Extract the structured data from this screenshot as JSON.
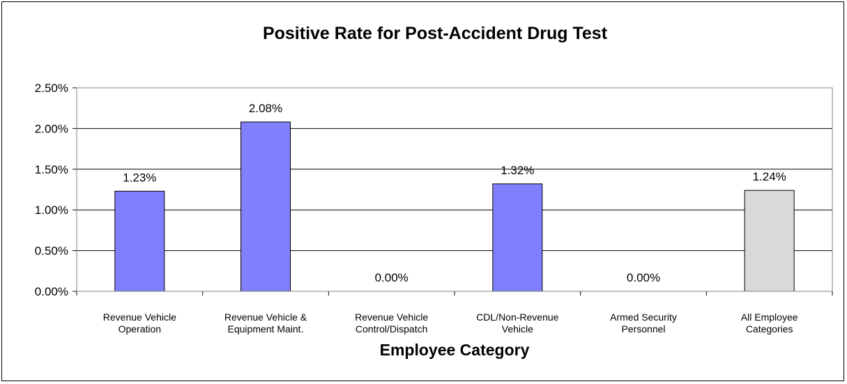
{
  "chart_data": {
    "type": "bar",
    "title": "Positive Rate for Post-Accident Drug Test",
    "xlabel": "Employee Category",
    "ylabel": "",
    "categories": [
      [
        "Revenue Vehicle",
        "Operation"
      ],
      [
        "Revenue Vehicle &",
        "Equipment Maint."
      ],
      [
        "Revenue Vehicle",
        "Control/Dispatch"
      ],
      [
        "CDL/Non-Revenue",
        "Vehicle"
      ],
      [
        "Armed Security",
        "Personnel"
      ],
      [
        "All Employee",
        "Categories"
      ]
    ],
    "values": [
      1.23,
      2.08,
      0.0,
      1.32,
      0.0,
      1.24
    ],
    "value_labels": [
      "1.23%",
      "2.08%",
      "0.00%",
      "1.32%",
      "0.00%",
      "1.24%"
    ],
    "bar_colors": [
      "#8080ff",
      "#8080ff",
      "#8080ff",
      "#8080ff",
      "#8080ff",
      "#d9d9d9"
    ],
    "ylim": [
      0,
      2.5
    ],
    "yticks": [
      0.0,
      0.5,
      1.0,
      1.5,
      2.0,
      2.5
    ],
    "ytick_labels": [
      "0.00%",
      "0.50%",
      "1.00%",
      "1.50%",
      "2.00%",
      "2.50%"
    ],
    "grid": true,
    "legend": "none"
  }
}
